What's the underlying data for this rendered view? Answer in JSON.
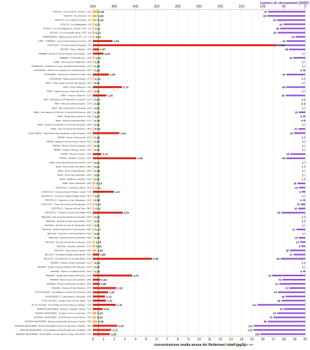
{
  "chart_data": {
    "type": "bar",
    "title": "numero di ritrovamenti (2020)",
    "xlabel": "concentrazione media annua dei fitofarmaci totali (µg/L)",
    "legend": "SQA-MA",
    "sqa_ma": 0.5,
    "x_range": [
      0,
      20
    ],
    "top_ticks": [
      500,
      450,
      400,
      350,
      300,
      250,
      200,
      150,
      100,
      50,
      0
    ],
    "bottom_ticks": [
      "0",
      "1",
      "2",
      "3",
      "4",
      "5",
      "6",
      "7",
      "8",
      "9",
      "10",
      "11",
      "12",
      "13",
      "14",
      "15",
      "16",
      "17",
      "18",
      "19",
      "20"
    ],
    "colors": {
      "bar_low": "#f2b035",
      "bar_high": "#d8261c",
      "count": "#8f4ed2",
      "sqa": "#57a832"
    },
    "rows": [
      {
        "label": "ASTA PO - Po a Cardè (S. Giovanni - 1)(*)",
        "value": "0,46",
        "conc": 0.46,
        "count": 87
      },
      {
        "label": "ASTA PO - Po a Pinerolo - 2(*)",
        "value": "0,38",
        "conc": 0.38,
        "count": 89
      },
      {
        "label": "ASTA PO - Po a Casale di Coniolo - 3(*)",
        "value": "0,36",
        "conc": 0.36,
        "count": 66
      },
      {
        "label": "ASTA PO - Po a Bassignana - 4(*)",
        "value": "0,11",
        "conc": 0.11,
        "count": 51
      },
      {
        "label": "ASTA PO - Po a Pontelagoscuro, Ferrara - POT - 5(*)",
        "value": "0,11",
        "conc": 0.11,
        "count": 59
      },
      {
        "label": "ASTA PO - Po a Serravalle, Berra - POT - 6(*)",
        "value": "0,12",
        "conc": 0.12,
        "count": 65
      },
      {
        "label": "BARDONEZZA - Bardonezza al ponte SP n. 10 - 7(*)",
        "value": "0,16",
        "conc": 0.16,
        "count": 23
      },
      {
        "label": "LORA - CARDENA - Lora al ponte strada per Fornaci - 8(*)",
        "value": "1,85",
        "conc": 1.85,
        "count": 44
      },
      {
        "label": "CONA/CIDA - Conca/la sorella di Zavatello - 9(*)",
        "value": "17,32",
        "conc": 17.32,
        "count": 92
      },
      {
        "label": "TIDONE - Tidone a Bilegno - 10(*)",
        "value": "0,57",
        "conc": 0.57,
        "count": 38
      },
      {
        "label": "TREBBIA - Diversivo Ozone stazione a sud Gragno - 11(*)",
        "value": "0,99",
        "conc": 0.99,
        "count": 1
      },
      {
        "label": "TREBBIA - Trebbia alla foce - 12(*)",
        "value": "0,13",
        "conc": 0.13,
        "count": 28
      },
      {
        "label": "NURE - Nure al ponte di Bagarotto - 13(*)",
        "value": "0,06",
        "conc": 0.06,
        "count": 1
      },
      {
        "label": "CHIAVENNA - Chiavenna a monte di Chiavenna Rocchetta - 14(*)",
        "value": "0,05",
        "conc": 0.05,
        "count": 1
      },
      {
        "label": "CHIAVENNA - Chiavenna a Vigolzone di Castell'Arquato - 15(*)",
        "value": "0,06",
        "conc": 0.06,
        "count": 5
      },
      {
        "label": "CHIAVENNA - Chiavenna a Chiavenna Landi - 16(*)",
        "value": "1,50",
        "conc": 1.5,
        "count": 44
      },
      {
        "label": "CHIAVENNA - Giglio al ponte di Giogoli - 17(*)",
        "value": "0,10",
        "conc": 0.1,
        "count": 2
      },
      {
        "label": "ARDA - Arda, strada comunale del Cardinal - 18(*)",
        "value": "0,01",
        "conc": 0.01,
        "count": 1
      },
      {
        "label": "ARDA - Arda a Villanova - 19(*)",
        "value": "2,74",
        "conc": 2.74,
        "count": 45
      },
      {
        "label": "ARDA - Ongina al ponte strada San Pietro - 20(*)",
        "value": "0,01",
        "conc": 0.01,
        "count": 1
      },
      {
        "label": "ARDA - Ongina a Villanova - 21(*)",
        "value": "1,26",
        "conc": 1.26,
        "count": 46
      },
      {
        "label": "TARO - Mandubio su SP Martinelli a Corticelle - 22(*)",
        "value": "0,03",
        "conc": 0.03,
        "count": 2
      },
      {
        "label": "TARO - Recchio a Molino Segreto - 23(*)",
        "value": "0,06",
        "conc": 0.06,
        "count": 3
      },
      {
        "label": "TARO - Taro a San Quirico, Trecasali - 24(*)",
        "value": "0,01",
        "conc": 0.01,
        "count": 1
      },
      {
        "label": "TARO - Scannabecco su SP 10 e S. Secondo Parmense - 25(*)",
        "value": "0,05",
        "conc": 0.05,
        "count": 15
      },
      {
        "label": "TARO - Rovacchia a Gramizzo - 26(*)",
        "value": "0,07",
        "conc": 0.07,
        "count": 5
      },
      {
        "label": "TARO - Parola a Costa Mezzana - 27(*)",
        "value": "0,04",
        "conc": 0.04,
        "count": 4
      },
      {
        "label": "TARO - Stirone a Fontanelle, S. Secondo Parmense - 28(*)",
        "value": "0,02",
        "conc": 0.02,
        "count": 1
      },
      {
        "label": "TARO - Taro al ponte di Gramignazzo - 29(*)",
        "value": "0,09",
        "conc": 0.09,
        "count": 16
      },
      {
        "label": "SISSA-ABATE - Sissa-Abate dopo Borghetto a Casa Rondello - 30(*)",
        "value": "2,49",
        "conc": 2.49,
        "count": 26
      },
      {
        "label": "PARMA - Parma a Parma città - 31(*)",
        "value": "0,06",
        "conc": 0.06,
        "count": 2
      },
      {
        "label": "PARMA - Baganza al ponte Nuovo, Parma - 32(*)",
        "value": "0,03",
        "conc": 0.03,
        "count": 1
      },
      {
        "label": "PARMA - Parma a Ponte Scodogna - 33(*)",
        "value": "0,01",
        "conc": 0.01,
        "count": 1
      },
      {
        "label": "PARMA - Galasso a Beccia, Torrile - 34(*)",
        "value": "0,02",
        "conc": 0.02,
        "count": 1
      },
      {
        "label": "PARMA - Parma a Colorno - 35(*)",
        "value": "0,79",
        "conc": 0.79,
        "count": 35
      },
      {
        "label": "PARMA - Naviglio a Colorno - 36(*)",
        "value": "4,08",
        "conc": 4.08,
        "count": 45
      },
      {
        "label": "ENZA - Enza alla traversa di Cerezzola - 37(*)",
        "value": "0,01",
        "conc": 0.01,
        "count": 1
      },
      {
        "label": "ENZA - Enza a San Polo d'Enza - 38(*)",
        "value": "0,02",
        "conc": 0.02,
        "count": 2
      },
      {
        "label": "ENZA - Enza a Sorga Bottone - 39(*)",
        "value": "0,06",
        "conc": 0.06,
        "count": 1
      },
      {
        "label": "ENZA - Terme Ina a Sant'Ilario - 40(*)",
        "value": "0,01",
        "conc": 0.01,
        "count": 1
      },
      {
        "label": "ENZA - Maddone a Sorbolo - 41(*)",
        "value": "0,01",
        "conc": 0.01,
        "count": 2
      },
      {
        "label": "ENZA - Enza a Brescello - 42(*)",
        "value": "0,23",
        "conc": 0.23,
        "count": 18
      },
      {
        "label": "CROSTOLO - Campola a Sesso - 43(*)",
        "value": "0,12",
        "conc": 0.12,
        "count": 15
      },
      {
        "label": "CROSTOLO - Crostolo al ponte Rivalta - Canali - 44(*)",
        "value": "1,97",
        "conc": 1.97,
        "count": 8
      },
      {
        "label": "CROSTOLO - Crostolo a Castelli, Reggio Emilia - 45(*)",
        "value": "0,07",
        "conc": 0.07,
        "count": 1
      },
      {
        "label": "CROSTOLO - Quaresimo a San Sebastiano - 46(*)",
        "value": "0,05",
        "conc": 0.05,
        "count": 5
      },
      {
        "label": "CROSTOLO - Cava Caval al Ponte Montagnago - 47(*)",
        "value": "0,13",
        "conc": 0.13,
        "count": 10
      },
      {
        "label": "CROSTOLO - Tassone a Ponte Tassi - 48(*)",
        "value": "0,12",
        "conc": 0.12,
        "count": 16
      },
      {
        "label": "CROSTOLO - Crostolo al ponte di Guastalla - 49(*)",
        "value": "2,81",
        "conc": 2.81,
        "count": 56
      },
      {
        "label": "SECCHIA - Dolo al campo sportivo di Cerredolo - 50(*)",
        "value": "0,03",
        "conc": 0.03,
        "count": 2
      },
      {
        "label": "SECCHIA - Secchia al ponte Lugo di Baiso - 51(*)",
        "value": "0,01",
        "conc": 0.01,
        "count": 2
      },
      {
        "label": "SECCHIA - Secchia al ponte di Castellarano - 52(*)",
        "value": "0,01",
        "conc": 0.01,
        "count": 1
      },
      {
        "label": "SECCHIA - Fossa di Spezzano a Colombarone - 53(*)",
        "value": "0,10",
        "conc": 0.1,
        "count": 21
      },
      {
        "label": "SECCHIA - Tresinaro in via Nuova Molina - 54(*)",
        "value": "0,01",
        "conc": 0.01,
        "count": 1
      },
      {
        "label": "SECCHIA - Secchia al ponte di Rubiera - 55(*)",
        "value": "0,05",
        "conc": 0.05,
        "count": 15
      },
      {
        "label": "SECCHIA - Secchia a Ponte Alto di Modena - 56(*)",
        "value": "0,15",
        "conc": 0.15,
        "count": 12
      },
      {
        "label": "SECCHIA - Secchia a Quistello - 57(*)",
        "value": "0,22",
        "conc": 0.22,
        "count": 9
      },
      {
        "label": "SECCHIA - Cavo Lama a Casette - 58(*)",
        "value": "0,33",
        "conc": 0.33,
        "count": 36
      },
      {
        "label": "SECCHIA - Parmigiana Moglia a Bondanello - 59(*)",
        "value": "0,59",
        "conc": 0.59,
        "count": 27
      },
      {
        "label": "SECCHIA - A.B. Moderese su via Valle Bassa - 60(*)",
        "value": "5,56",
        "conc": 5.56,
        "count": 58
      },
      {
        "label": "PANARO - Panaro al ponte di Marano - 61(*)",
        "value": "0,03",
        "conc": 0.03,
        "count": 2
      },
      {
        "label": "PANARO - Panaro al ponte ciclabile a San Damiano - 62(*)",
        "value": "0,01",
        "conc": 0.01,
        "count": 1
      },
      {
        "label": "PANARO - Panaro in località la Fossa - 63(*)",
        "value": "0,06",
        "conc": 0.06,
        "count": 5
      },
      {
        "label": "PANARO - Naviglio alla briglia di Bomporto - 64(*)",
        "value": "3,70",
        "conc": 3.7,
        "count": 78
      },
      {
        "label": "PANARO - Bosco Zena a Tormacaccio - 65(*)",
        "value": "0,69",
        "conc": 0.69,
        "count": 53
      },
      {
        "label": "PANARO - Diversivo di Burana a Gualtieri - 66(*)",
        "value": "0,65",
        "conc": 0.65,
        "count": 61
      },
      {
        "label": "PANARO - Panaro a Ponte Bondeno - 67(*)",
        "value": "2,18",
        "conc": 2.18,
        "count": 37
      },
      {
        "label": "PO DI VOLANO - Canal Bianco a Ruina, Ro Ferrarese - 68(*)",
        "value": "1,42",
        "conc": 1.42,
        "count": 64
      },
      {
        "label": "CANAL BIANCO - Canal Bianco a Brescello - 69(*)",
        "value": "1,14",
        "conc": 1.14,
        "count": 46
      },
      {
        "label": "PO DI VOLANO - Canale Leone a Ponte Valesi - 70(*)",
        "value": "1,22",
        "conc": 1.22,
        "count": 56
      },
      {
        "label": "PO DI VOLANO - Po di Volano al ponte Volano a Codigoro - 71(*)",
        "value": "2,16",
        "conc": 2.16,
        "count": 112
      },
      {
        "label": "BURANA-NAVIGABILE - Burana a Casaglia, Ferrara - 72(*)",
        "value": "0,92",
        "conc": 0.92,
        "count": 50
      },
      {
        "label": "BURANA-NAVIGABILE - Canale di Cento a Casumaro - 73(*)",
        "value": "0,32",
        "conc": 0.32,
        "count": 66
      },
      {
        "label": "BURANA - NAVIGABILE - Po di Primaro a Ponte Molino - 74(*)",
        "value": "0,28",
        "conc": 0.28,
        "count": 75
      },
      {
        "label": "BURANA-NAVIGABILE - Burana a passerella Fossanova, Ferrara - 74(*)",
        "value": "0,38",
        "conc": 0.38,
        "count": 88
      },
      {
        "label": "BURANA-NAVIGABILE - Burana-Navigabile a monte di Lagosanto, Ostellato - 75(*)",
        "value": "2,29",
        "conc": 2.29,
        "count": 121
      },
      {
        "label": "BURANA-NAVIGABILE - Circondariale a chiusura Valle Lepri, Ostellato - 76(*)",
        "value": "1,72",
        "conc": 1.72,
        "count": 122
      },
      {
        "label": "BURANA-NAVIGABILE - Circondariale a monte idrovoro Fosse, Comacchio - 77(*)",
        "value": "1,59",
        "conc": 1.59,
        "count": 105
      }
    ]
  }
}
